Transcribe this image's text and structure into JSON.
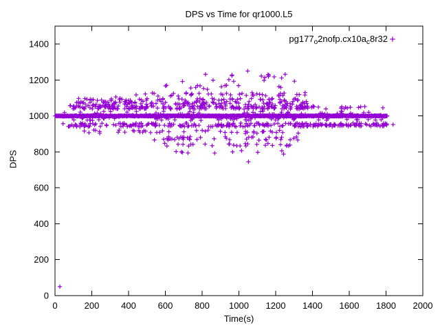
{
  "chart": {
    "title": "DPS vs Time for qr1000.L5",
    "xlabel": "Time(s)",
    "ylabel": "DPS",
    "legend": {
      "p1": "pg177",
      "sub1": "o",
      "p2": "2nofp.cx10a",
      "sub2": "c",
      "p3": "8r32",
      "marker_icon": "plus-icon"
    }
  },
  "chart_data": {
    "type": "scatter",
    "title": "DPS vs Time for qr1000.L5",
    "xlabel": "Time(s)",
    "ylabel": "DPS",
    "legend_label": "pg177_o2nofp.cx10a_c8r32",
    "legend_position": "top-right-inside",
    "marker": "plus",
    "color": "#9400d3",
    "grid": false,
    "xlim": [
      0,
      2000
    ],
    "ylim": [
      0,
      1500
    ],
    "x_ticks": [
      0,
      200,
      400,
      600,
      800,
      1000,
      1200,
      1400,
      1600,
      1800,
      2000
    ],
    "y_ticks": [
      0,
      200,
      400,
      600,
      800,
      1000,
      1200,
      1400
    ],
    "seed": 42,
    "main_band": {
      "y": 1000,
      "x_start": 2,
      "x_end": 1806,
      "step": 2,
      "jitter_y": 2.5
    },
    "clusters": [
      {
        "y": 950,
        "dy": 11,
        "x0": 40,
        "x1": 1805,
        "n": 230
      },
      {
        "y": 1048,
        "dy": 10,
        "x0": 60,
        "x1": 1420,
        "n": 200
      },
      {
        "y": 1072,
        "dy": 9,
        "x0": 90,
        "x1": 1380,
        "n": 110
      },
      {
        "y": 1092,
        "dy": 6,
        "x0": 120,
        "x1": 1340,
        "n": 60
      },
      {
        "y": 1000,
        "dy": 26,
        "x0": 40,
        "x1": 1800,
        "n": 140
      },
      {
        "y": 912,
        "dy": 10,
        "x0": 150,
        "x1": 1330,
        "n": 45
      },
      {
        "y": 875,
        "dy": 10,
        "x0": 540,
        "x1": 1330,
        "n": 42
      },
      {
        "y": 840,
        "dy": 8,
        "x0": 590,
        "x1": 1280,
        "n": 26
      },
      {
        "y": 1120,
        "dy": 10,
        "x0": 430,
        "x1": 1380,
        "n": 40
      },
      {
        "y": 1160,
        "dy": 14,
        "x0": 600,
        "x1": 1290,
        "n": 14
      },
      {
        "y": 800,
        "dy": 8,
        "x0": 640,
        "x1": 1260,
        "n": 9
      },
      {
        "y": 1210,
        "dy": 35,
        "x0": 650,
        "x1": 1290,
        "n": 12
      },
      {
        "y": 1045,
        "dy": 8,
        "x0": 1430,
        "x1": 1800,
        "n": 12
      },
      {
        "y": 948,
        "dy": 6,
        "x0": 1400,
        "x1": 1800,
        "n": 25
      }
    ],
    "outliers": [
      [
        26,
        50
      ],
      [
        1048,
        1250
      ],
      [
        1052,
        745
      ],
      [
        1243,
        788
      ],
      [
        693,
        1192
      ],
      [
        962,
        1224
      ],
      [
        1137,
        1198
      ],
      [
        1232,
        1212
      ],
      [
        1302,
        1193
      ],
      [
        331,
        1106
      ],
      [
        1395,
        1048
      ],
      [
        1838,
        952
      ]
    ]
  }
}
